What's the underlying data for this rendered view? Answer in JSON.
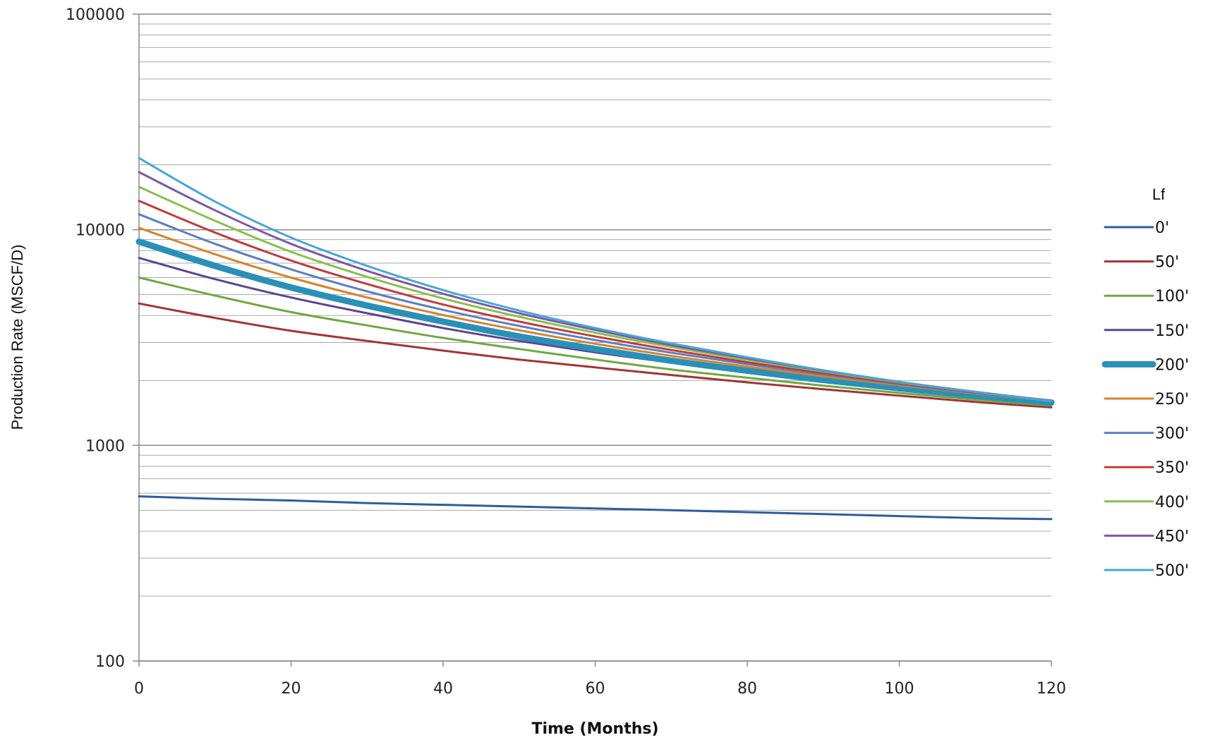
{
  "chart_data": {
    "type": "line",
    "xlabel": "Time (Months)",
    "ylabel": "Production Rate (MSCF/D)",
    "yscale": "log",
    "xlim": [
      0,
      120
    ],
    "ylim": [
      100,
      100000
    ],
    "xticks": [
      "0",
      "20",
      "40",
      "60",
      "80",
      "100",
      "120"
    ],
    "yticks": [
      "100",
      "1000",
      "10000",
      "100000"
    ],
    "grid": true,
    "legend_title": "Lf",
    "legend_position": "right",
    "x": [
      0,
      10,
      20,
      30,
      40,
      50,
      60,
      70,
      80,
      90,
      100,
      110,
      120
    ],
    "series": [
      {
        "name": "0'",
        "color": "#2e5c9e",
        "width": 3,
        "values": [
          580,
          565,
          555,
          540,
          530,
          520,
          510,
          500,
          490,
          480,
          470,
          460,
          455
        ]
      },
      {
        "name": "50'",
        "color": "#a63232",
        "width": 3,
        "values": [
          4550,
          3900,
          3400,
          3050,
          2750,
          2500,
          2300,
          2120,
          1960,
          1820,
          1700,
          1590,
          1500
        ]
      },
      {
        "name": "100'",
        "color": "#6fa842",
        "width": 3,
        "values": [
          6000,
          4950,
          4150,
          3600,
          3150,
          2800,
          2500,
          2250,
          2060,
          1890,
          1750,
          1630,
          1530
        ]
      },
      {
        "name": "150'",
        "color": "#5b4392",
        "width": 3,
        "values": [
          7400,
          5900,
          4850,
          4100,
          3500,
          3050,
          2700,
          2420,
          2180,
          1990,
          1830,
          1700,
          1590
        ]
      },
      {
        "name": "200'",
        "color": "#2a90b8",
        "width": 9,
        "values": [
          8800,
          6800,
          5400,
          4450,
          3750,
          3200,
          2800,
          2470,
          2220,
          2010,
          1840,
          1700,
          1580
        ]
      },
      {
        "name": "250'",
        "color": "#d9822b",
        "width": 3,
        "values": [
          10200,
          7700,
          6000,
          4850,
          4020,
          3420,
          2960,
          2600,
          2320,
          2090,
          1900,
          1740,
          1610
        ]
      },
      {
        "name": "300'",
        "color": "#5a7fc2",
        "width": 3,
        "values": [
          11800,
          8600,
          6550,
          5180,
          4250,
          3580,
          3080,
          2690,
          2380,
          2130,
          1920,
          1750,
          1610
        ]
      },
      {
        "name": "350'",
        "color": "#c23b3b",
        "width": 3,
        "values": [
          13600,
          9700,
          7200,
          5600,
          4500,
          3750,
          3200,
          2770,
          2430,
          2160,
          1940,
          1760,
          1610
        ]
      },
      {
        "name": "400'",
        "color": "#88c04a",
        "width": 3,
        "values": [
          15800,
          11000,
          7900,
          6050,
          4800,
          3950,
          3330,
          2860,
          2490,
          2200,
          1960,
          1770,
          1610
        ]
      },
      {
        "name": "450'",
        "color": "#7a5aa6",
        "width": 3,
        "values": [
          18500,
          12300,
          8600,
          6450,
          5050,
          4100,
          3430,
          2920,
          2530,
          2220,
          1970,
          1770,
          1610
        ]
      },
      {
        "name": "500'",
        "color": "#48a6d6",
        "width": 3,
        "values": [
          21500,
          13500,
          9200,
          6800,
          5250,
          4220,
          3500,
          2970,
          2560,
          2230,
          1970,
          1770,
          1600
        ]
      }
    ]
  }
}
